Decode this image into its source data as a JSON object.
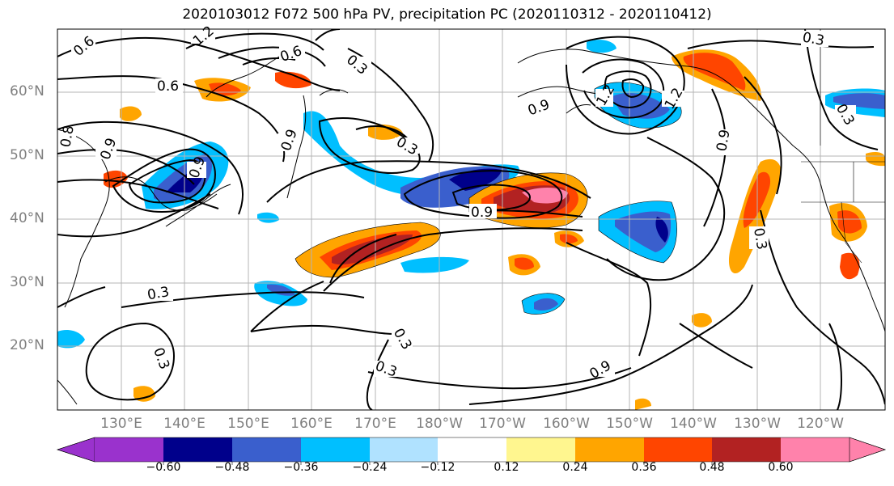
{
  "title": "2020103012 F072 500 hPa PV, precipitation PC (2020110312 - 2020110412)",
  "lat_labels": [
    "60°N",
    "50°N",
    "40°N",
    "30°N",
    "20°N"
  ],
  "lon_labels": [
    "130°E",
    "140°E",
    "150°E",
    "160°E",
    "170°E",
    "180°W",
    "170°W",
    "160°W",
    "150°W",
    "140°W",
    "130°W",
    "120°W"
  ],
  "contour_labels": [
    "0.6",
    "1.2",
    "0.6",
    "0.9",
    "0.8",
    "0.9",
    "0.9",
    "0.6",
    "0.3",
    "0.3",
    "0.3",
    "0.3",
    "0.3",
    "0.3",
    "0.9",
    "0.9",
    "0.9",
    "1.2",
    "1.2",
    "0.3",
    "0.9",
    "0.3",
    "0.3"
  ],
  "colorbar": {
    "tick_labels": [
      "−0.60",
      "−0.48",
      "−0.36",
      "−0.24",
      "−0.12",
      "0.12",
      "0.24",
      "0.36",
      "0.48",
      "0.60"
    ],
    "colors": [
      "#9a32cd",
      "#00008b",
      "#3a5fcd",
      "#00bfff",
      "#b0e2ff",
      "#ffffff",
      "#fff68f",
      "#ffa500",
      "#ff4500",
      "#b22222",
      "#ff82ab"
    ]
  }
}
